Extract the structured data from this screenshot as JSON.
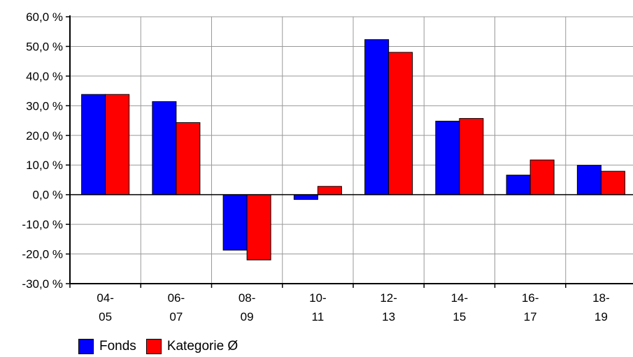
{
  "chart_data": {
    "type": "bar",
    "categories": [
      [
        "04-",
        "05"
      ],
      [
        "06-",
        "07"
      ],
      [
        "08-",
        "09"
      ],
      [
        "10-",
        "11"
      ],
      [
        "12-",
        "13"
      ],
      [
        "14-",
        "15"
      ],
      [
        "16-",
        "17"
      ],
      [
        "18-",
        "19"
      ]
    ],
    "series": [
      {
        "name": "Fonds",
        "color": "#0000ff",
        "values": [
          33.8,
          31.4,
          -18.7,
          -1.6,
          52.3,
          24.8,
          6.6,
          9.9
        ]
      },
      {
        "name": "Kategorie Ø",
        "color": "#ff0000",
        "values": [
          33.8,
          24.3,
          -22.0,
          2.8,
          48.0,
          25.7,
          11.7,
          7.9
        ]
      }
    ],
    "ylim": [
      -30,
      60
    ],
    "yticks": [
      60,
      50,
      40,
      30,
      20,
      10,
      0,
      -10,
      -20,
      -30
    ],
    "ytick_labels": [
      "60,0 %",
      "50,0 %",
      "40,0 %",
      "30,0 %",
      "20,0 %",
      "10,0 %",
      "0,0 %",
      "-10,0 %",
      "-20,0 %",
      "-30,0 %"
    ],
    "grid": true,
    "legend_position": "bottom-left"
  }
}
